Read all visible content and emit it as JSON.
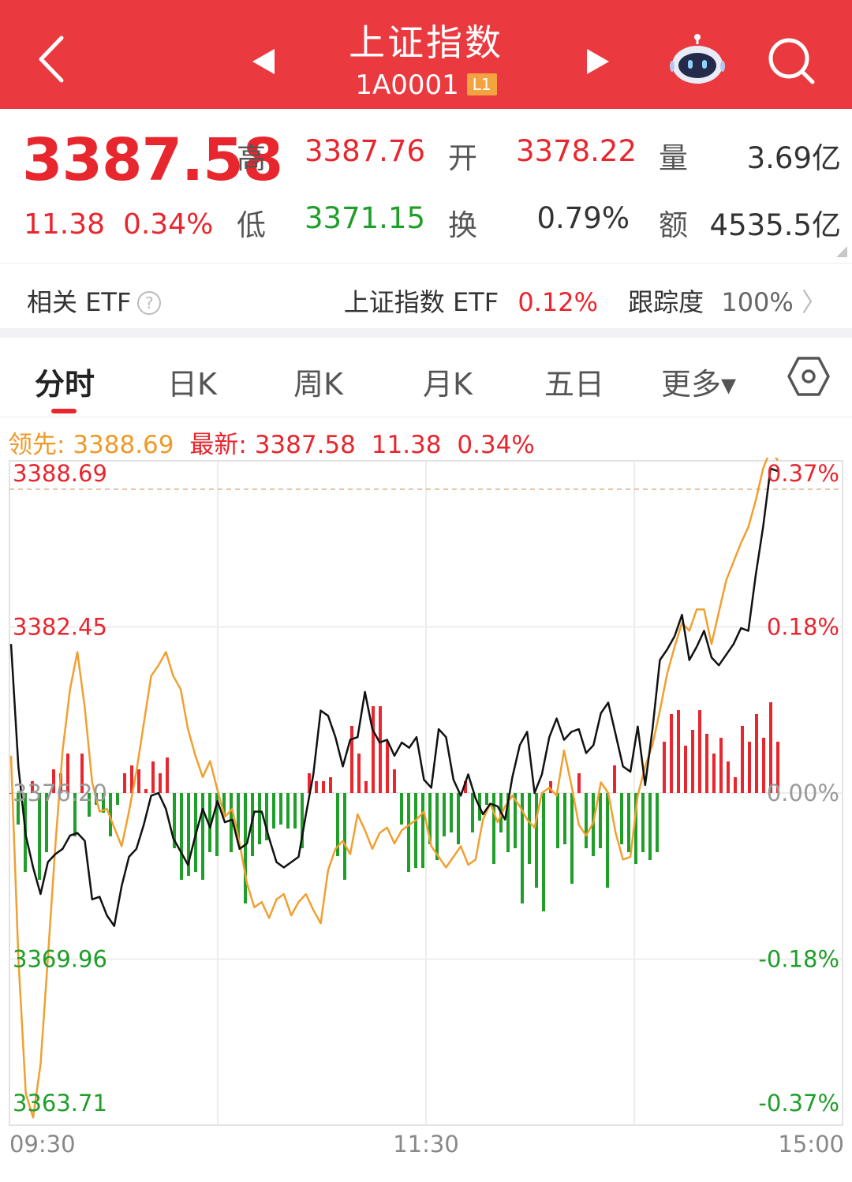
{
  "header": {
    "title": "上证指数",
    "code": "1A0001",
    "badge": "L1"
  },
  "quote": {
    "price": "3387.58",
    "change": "11.38",
    "change_pct": "0.34%",
    "high_label": "高",
    "high": "3387.76",
    "open_label": "开",
    "open": "3378.22",
    "volume_label": "量",
    "volume": "3.69亿",
    "low_label": "低",
    "low": "3371.15",
    "turnover_label": "换",
    "turnover": "0.79%",
    "amount_label": "额",
    "amount": "4535.5亿"
  },
  "etf": {
    "label": "相关 ETF",
    "help": "?",
    "name": "上证指数 ETF",
    "pct": "0.12%",
    "tracking_label": "跟踪度",
    "tracking": "100%",
    "chevron": "〉"
  },
  "tabs": [
    "分时",
    "日K",
    "周K",
    "月K",
    "五日",
    "更多▾"
  ],
  "info": {
    "lead_label": "领先:",
    "lead_value": "3388.69",
    "latest_label": "最新:",
    "latest_value": "3387.58",
    "latest_change": "11.38",
    "latest_pct": "0.34%"
  },
  "colors": {
    "up": "#e8262e",
    "down": "#1f9e2a",
    "lead_line": "#f0a030",
    "price_line": "#111111",
    "header": "#ea3a40"
  },
  "chart_data": {
    "type": "line",
    "y_left_labels": [
      "3388.69",
      "3382.45",
      "3376.20",
      "3369.96",
      "3363.71"
    ],
    "y_right_labels": [
      "0.37%",
      "0.18%",
      "0.00%",
      "-0.18%",
      "-0.37%"
    ],
    "x_labels": [
      "09:30",
      "11:30",
      "15:00"
    ],
    "ylim": [
      3363.71,
      3388.69
    ],
    "prev_close": 3376.2,
    "series": [
      {
        "color": "#111111",
        "values": [
          3381.8,
          3377.2,
          3374.6,
          3373.4,
          3372.4,
          3373.6,
          3373.9,
          3374.1,
          3374.6,
          3374.7,
          3374.4,
          3372.2,
          3372.3,
          3371.6,
          3371.2,
          3372.7,
          3373.8,
          3374.1,
          3375.0,
          3376.1,
          3376.2,
          3375.6,
          3374.5,
          3374.0,
          3373.5,
          3374.6,
          3375.6,
          3374.9,
          3375.9,
          3375.1,
          3375.2,
          3374.1,
          3374.3,
          3375.5,
          3375.5,
          3374.5,
          3373.6,
          3373.4,
          3373.6,
          3373.8,
          3375.4,
          3376.9,
          3379.3,
          3379.1,
          3378.3,
          3377.2,
          3378.2,
          3378.3,
          3380.0,
          3378.6,
          3378.1,
          3378.2,
          3377.6,
          3378.1,
          3377.9,
          3378.3,
          3376.7,
          3376.4,
          3378.6,
          3378.3,
          3376.7,
          3376.1,
          3376.9,
          3376.0,
          3375.4,
          3375.8,
          3375.7,
          3375.2,
          3376.8,
          3378.0,
          3378.5,
          3376.2,
          3376.9,
          3378.3,
          3379.0,
          3378.2,
          3378.5,
          3378.6,
          3377.7,
          3378.0,
          3379.2,
          3379.6,
          3378.4,
          3377.2,
          3377.0,
          3378.7,
          3376.5,
          3378.6,
          3381.2,
          3381.6,
          3382.1,
          3382.9,
          3381.2,
          3381.7,
          3382.3,
          3381.3,
          3381.0,
          3381.4,
          3381.8,
          3382.4,
          3382.3,
          3384.4,
          3386.2,
          3388.4,
          3388.3
        ]
      },
      {
        "color": "#f0a030",
        "values": [
          3377.6,
          3370.0,
          3364.9,
          3364.0,
          3366.0,
          3370.0,
          3374.2,
          3377.8,
          3380.1,
          3381.5,
          3379.4,
          3376.6,
          3375.5,
          3375.6,
          3374.9,
          3374.2,
          3375.5,
          3377.0,
          3378.8,
          3380.6,
          3381.0,
          3381.5,
          3380.6,
          3380.1,
          3378.6,
          3377.6,
          3376.8,
          3377.4,
          3376.3,
          3375.3,
          3375.6,
          3374.3,
          3372.8,
          3371.9,
          3372.1,
          3371.5,
          3372.2,
          3372.4,
          3371.6,
          3372.1,
          3372.4,
          3371.8,
          3371.3,
          3373.3,
          3374.1,
          3374.4,
          3373.9,
          3375.4,
          3374.8,
          3374.1,
          3374.7,
          3374.9,
          3374.3,
          3374.8,
          3375.0,
          3375.2,
          3375.5,
          3374.2,
          3373.8,
          3373.4,
          3373.8,
          3374.2,
          3373.5,
          3373.7,
          3375.2,
          3375.8,
          3375.1,
          3375.7,
          3376.1,
          3375.7,
          3375.2,
          3374.9,
          3376.2,
          3376.4,
          3376.1,
          3377.8,
          3376.5,
          3375.0,
          3374.6,
          3375.1,
          3376.6,
          3376.2,
          3374.7,
          3373.7,
          3373.8,
          3376.1,
          3377.2,
          3378.0,
          3379.3,
          3380.7,
          3381.7,
          3382.6,
          3382.3,
          3383.1,
          3383.1,
          3381.8,
          3383.0,
          3384.2,
          3384.9,
          3385.6,
          3386.2,
          3387.2,
          3388.4,
          3389.1,
          3388.7
        ]
      }
    ],
    "bars": [
      0.0,
      -0.8,
      -2.0,
      0.3,
      -2.2,
      -1.5,
      0.6,
      0.5,
      1.0,
      -1.1,
      1.0,
      -0.6,
      -0.3,
      -0.5,
      -1.1,
      -0.3,
      0.5,
      0.7,
      0.6,
      0.1,
      0.8,
      0.5,
      0.9,
      -1.4,
      -2.2,
      -2.1,
      -2.0,
      -2.2,
      -1.5,
      -1.6,
      -0.6,
      -1.5,
      -1.2,
      -2.8,
      -1.6,
      -1.3,
      -1.2,
      -0.9,
      -0.8,
      -0.9,
      -0.9,
      -1.4,
      0.5,
      0.3,
      0.3,
      0.4,
      -1.6,
      -2.2,
      1.7,
      1.0,
      0.3,
      2.2,
      2.2,
      1.3,
      0.6,
      -0.8,
      -2.0,
      -1.9,
      -1.9,
      -1.3,
      -1.7,
      -1.1,
      -1.0,
      -1.3,
      0.3,
      -1.0,
      -0.7,
      -0.3,
      -1.8,
      -1.0,
      -1.5,
      -1.4,
      -2.8,
      -1.8,
      -2.4,
      -3.0,
      0.3,
      -1.4,
      -1.3,
      -2.3,
      0.5,
      -1.4,
      -1.6,
      -1.4,
      -2.4,
      0.7,
      -1.3,
      -1.5,
      -1.8,
      -1.5,
      -1.7,
      -1.5,
      1.3,
      2.0,
      2.1,
      1.2,
      1.6,
      2.1,
      1.5,
      1.0,
      1.4,
      0.8,
      0.4,
      1.7,
      1.3,
      2.0,
      1.4,
      2.3,
      1.3
    ]
  }
}
